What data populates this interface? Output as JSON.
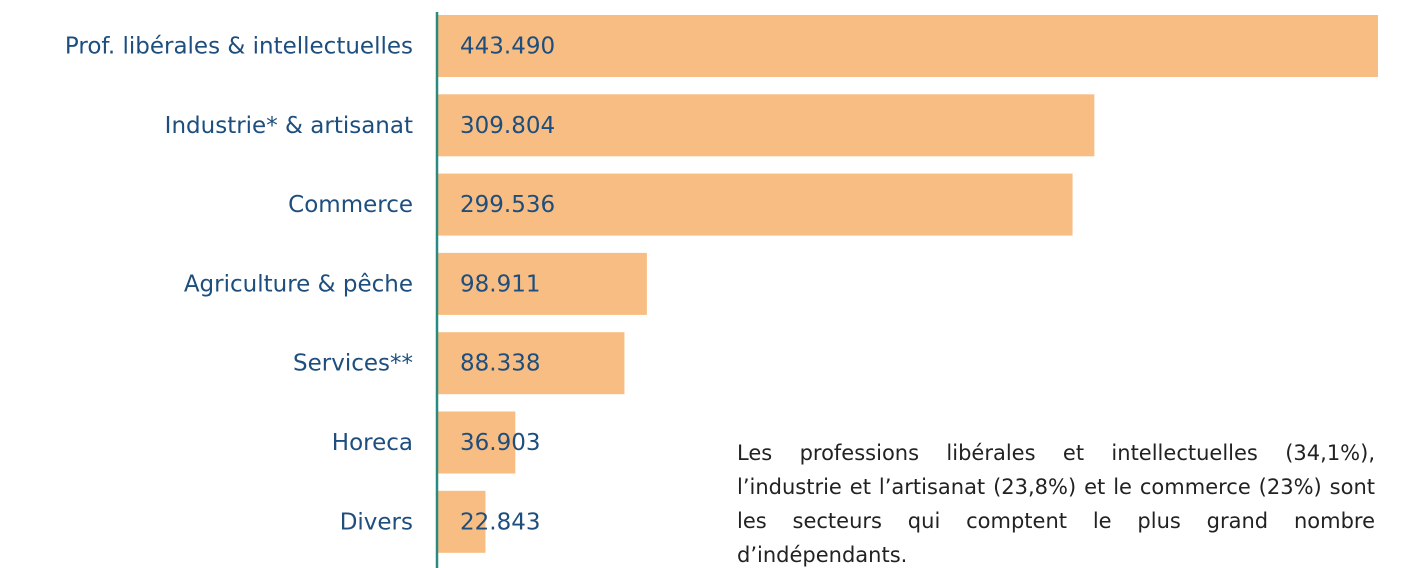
{
  "chart_data": {
    "type": "bar",
    "orientation": "horizontal",
    "categories": [
      "Prof. libérales & intellectuelles",
      "Industrie* & artisanat",
      "Commerce",
      "Agriculture & pêche",
      "Services**",
      "Horeca",
      "Divers"
    ],
    "values": [
      443490,
      309804,
      299536,
      98911,
      88338,
      36903,
      22843
    ],
    "value_labels": [
      "443.490",
      "309.804",
      "299.536",
      "98.911",
      "88.338",
      "36.903",
      "22.843"
    ],
    "color": "#f7bd82",
    "xlim": [
      0,
      443490
    ],
    "annotation": "Les professions libérales et intellectuelles (34,1%), l’industrie et l’artisanat (23,8%) et le commerce (23%) sont les secteurs qui comptent le plus grand nombre d’indépendants."
  }
}
